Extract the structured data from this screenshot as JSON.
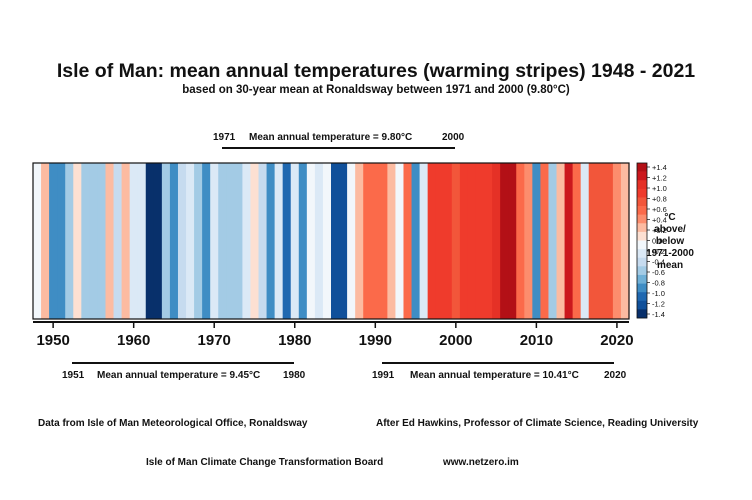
{
  "header": {
    "title": "Isle of Man: mean annual temperatures (warming stripes) 1948 - 2021",
    "subtitle": "based on 30-year mean at Ronaldsway between 1971 and 2000 (9.80°C)"
  },
  "annotations": {
    "ref_period": {
      "start": "1971",
      "label": "Mean annual temperature = 9.80°C",
      "end": "2000"
    },
    "p1": {
      "start": "1951",
      "label": "Mean annual temperature = 9.45°C",
      "end": "1980"
    },
    "p2": {
      "start": "1991",
      "label": "Mean annual temperature = 10.41°C",
      "end": "2020"
    }
  },
  "legend": {
    "unit_lines": [
      "°C",
      "above/",
      "below",
      "1971-2000",
      "mean"
    ]
  },
  "footer": {
    "source": "Data from Isle of Man Meteorological Office, Ronaldsway",
    "credit": "After Ed Hawkins, Professor of Climate Science, Reading University",
    "org": "Isle of Man Climate Change Transformation Board",
    "url": "www.netzero.im"
  },
  "chart_data": {
    "type": "heatmap",
    "title": "Isle of Man: mean annual temperatures (warming stripes) 1948 - 2021",
    "xlim": [
      1948,
      2021
    ],
    "x_ticks": [
      1950,
      1960,
      1970,
      1980,
      1990,
      2000,
      2010,
      2020
    ],
    "years": [
      1948,
      1949,
      1950,
      1951,
      1952,
      1953,
      1954,
      1955,
      1956,
      1957,
      1958,
      1959,
      1960,
      1961,
      1962,
      1963,
      1964,
      1965,
      1966,
      1967,
      1968,
      1969,
      1970,
      1971,
      1972,
      1973,
      1974,
      1975,
      1976,
      1977,
      1978,
      1979,
      1980,
      1981,
      1982,
      1983,
      1984,
      1985,
      1986,
      1987,
      1988,
      1989,
      1990,
      1991,
      1992,
      1993,
      1994,
      1995,
      1996,
      1997,
      1998,
      1999,
      2000,
      2001,
      2002,
      2003,
      2004,
      2005,
      2006,
      2007,
      2008,
      2009,
      2010,
      2011,
      2012,
      2013,
      2014,
      2015,
      2016,
      2017,
      2018,
      2019,
      2020,
      2021
    ],
    "anomalies": [
      -0.1,
      0.3,
      -0.9,
      -0.9,
      -0.6,
      0.1,
      -0.5,
      -0.5,
      -0.5,
      0.3,
      -0.4,
      0.3,
      -0.2,
      -0.3,
      -1.3,
      -1.3,
      -0.5,
      -0.9,
      -0.4,
      -0.2,
      -0.5,
      -0.8,
      -0.3,
      -0.5,
      -0.5,
      -0.5,
      -0.3,
      0.1,
      -0.4,
      -0.9,
      -0.3,
      -1.0,
      -0.3,
      -0.8,
      -0.1,
      -0.3,
      -0.1,
      -1.1,
      -1.1,
      0.0,
      0.2,
      0.5,
      0.6,
      0.5,
      0.3,
      -0.1,
      0.6,
      -0.8,
      -0.3,
      0.9,
      0.9,
      0.9,
      0.7,
      0.9,
      0.9,
      0.9,
      0.9,
      1.0,
      1.3,
      1.3,
      0.6,
      0.4,
      -0.8,
      0.5,
      -0.5,
      0.2,
      1.1,
      0.6,
      -0.3,
      0.7,
      0.7,
      0.7,
      0.4,
      0.3
    ],
    "color_scale": {
      "ticks": [
        "+1.4",
        "+1.2",
        "+1.0",
        "+0.8",
        "+0.6",
        "+0.4",
        "+0.2",
        "0.0",
        "-0.2",
        "-0.4",
        "-0.6",
        "-0.8",
        "-1.0",
        "-1.2",
        "-1.4"
      ],
      "colors": [
        "#b31016",
        "#cb181d",
        "#e53126",
        "#ef3b2c",
        "#f2563a",
        "#fb6a4a",
        "#fc8d6d",
        "#fcbba1",
        "#fde0d2",
        "#f2f7fb",
        "#dbe9f6",
        "#c6dbef",
        "#a3cbe5",
        "#6fb0d7",
        "#3f8dc4",
        "#1f68b0",
        "#10509a",
        "#08306b"
      ]
    }
  }
}
